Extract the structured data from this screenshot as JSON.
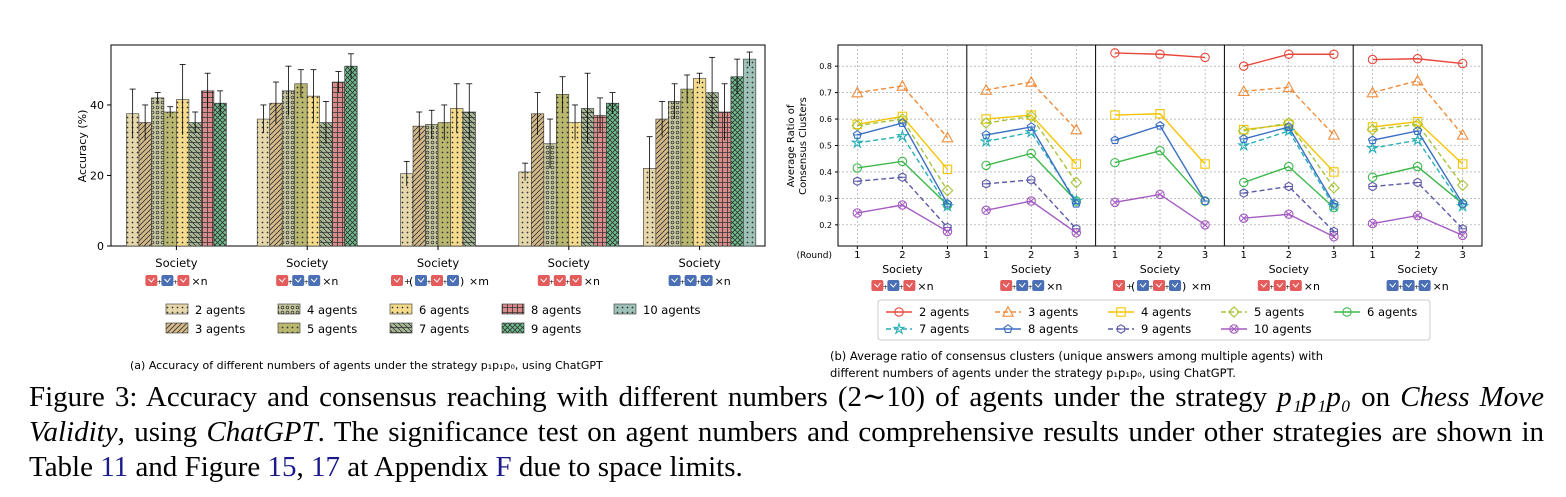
{
  "figure": {
    "label": "Figure 3:",
    "caption_parts": [
      {
        "t": "text",
        "v": " Accuracy and consensus reaching with different numbers (2∼10) of agents under the strategy "
      },
      {
        "t": "math",
        "v": "p₁p₁p₀"
      },
      {
        "t": "text",
        "v": " on "
      },
      {
        "t": "italic",
        "v": "Chess Move Validity"
      },
      {
        "t": "text",
        "v": ", using "
      },
      {
        "t": "italic",
        "v": "ChatGPT"
      },
      {
        "t": "text",
        "v": ". The significance test on agent numbers and comprehensive results under other strategies are shown in Table "
      },
      {
        "t": "ref",
        "v": "11"
      },
      {
        "t": "text",
        "v": " and Figure "
      },
      {
        "t": "ref",
        "v": "15"
      },
      {
        "t": "text",
        "v": ", "
      },
      {
        "t": "ref",
        "v": "17"
      },
      {
        "t": "text",
        "v": " at Appendix "
      },
      {
        "t": "ref",
        "v": "F"
      },
      {
        "t": "text",
        "v": " due to space limits."
      }
    ]
  },
  "society_formulas": [
    "×n",
    "×n",
    "×m",
    "×n",
    "×n"
  ],
  "society_icon_colors": [
    [
      "#e35b5b",
      "#4a6fb5",
      "#e35b5b"
    ],
    [
      "#e35b5b",
      "#4a6fb5",
      "#4a6fb5"
    ],
    [
      "#e35b5b",
      "#4a6fb5",
      "#e35b5b",
      "#4a6fb5"
    ],
    [
      "#e35b5b",
      "#e35b5b",
      "#e35b5b"
    ],
    [
      "#4a6fb5",
      "#4a6fb5",
      "#4a6fb5"
    ]
  ],
  "chart_data": [
    {
      "id": "a",
      "type": "bar",
      "caption": "(a) Accuracy of different numbers of agents under the strategy p₁p₁p₀, using ChatGPT",
      "ylabel": "Accuracy (%)",
      "ylim": [
        0,
        57
      ],
      "yticks": [
        0,
        20,
        40
      ],
      "categories": [
        "Society",
        "Society",
        "Society",
        "Society",
        "Society"
      ],
      "series": [
        {
          "name": "2 agents",
          "color": "#e6d8ab",
          "pattern": "dots",
          "values": [
            37.5,
            36.0,
            20.5,
            21.0,
            22.0
          ],
          "err": [
            7.0,
            4.0,
            3.5,
            2.5,
            9.0
          ]
        },
        {
          "name": "3 agents",
          "color": "#d6bb8a",
          "pattern": "diag",
          "values": [
            35.0,
            40.5,
            34.0,
            37.5,
            36.0
          ],
          "err": [
            5.0,
            6.0,
            4.0,
            6.0,
            5.0
          ]
        },
        {
          "name": "4 agents",
          "color": "#c8c8a0",
          "pattern": "stars",
          "values": [
            42.0,
            44.0,
            34.5,
            29.0,
            41.0
          ],
          "err": [
            1.5,
            7.0,
            4.0,
            7.0,
            5.0
          ]
        },
        {
          "name": "5 agents",
          "color": "#b9b86e",
          "pattern": "dots",
          "values": [
            38.0,
            46.0,
            35.0,
            43.0,
            44.5
          ],
          "err": [
            1.5,
            4.0,
            5.0,
            5.0,
            4.0
          ]
        },
        {
          "name": "6 agents",
          "color": "#f5dc8c",
          "pattern": "dots",
          "values": [
            41.5,
            42.5,
            39.0,
            35.0,
            47.5
          ],
          "err": [
            10.0,
            7.5,
            7.0,
            5.0,
            1.5
          ]
        },
        {
          "name": "7 agents",
          "color": "#a6b894",
          "pattern": "hatch",
          "values": [
            35.0,
            35.0,
            38.0,
            39.0,
            43.5
          ],
          "err": [
            3.0,
            6.0,
            8.0,
            10.0,
            10.0
          ]
        },
        {
          "name": "8 agents",
          "color": "#d98a8a",
          "pattern": "grid",
          "values": [
            44.0,
            46.5,
            0,
            37.0,
            38.0
          ],
          "err": [
            5.0,
            3.0,
            0,
            5.0,
            8.0
          ]
        },
        {
          "name": "9 agents",
          "color": "#6fbf8e",
          "pattern": "cross",
          "values": [
            40.5,
            51.0,
            0,
            40.5,
            48.0
          ],
          "err": [
            3.5,
            3.5,
            0,
            3.0,
            5.0
          ]
        },
        {
          "name": "10 agents",
          "color": "#9fc2b8",
          "pattern": "dots",
          "values": [
            0,
            0,
            0,
            0,
            53.0
          ],
          "err": [
            0,
            0,
            0,
            0,
            2.0
          ]
        }
      ],
      "legend": [
        "2 agents",
        "4 agents",
        "6 agents",
        "8 agents",
        "10 agents",
        "3 agents",
        "5 agents",
        "7 agents",
        "9 agents"
      ],
      "legend_placement": "bottom"
    },
    {
      "id": "b",
      "type": "line",
      "caption_line1": "(b)  Average ratio of consensus clusters (unique answers among multiple agents) with",
      "caption_line2": "different numbers of agents under the strategy p₁p₁p₀, using ChatGPT.",
      "ylabel_line1": "Average Ratio of",
      "ylabel_line2": "Consensus Clusters",
      "ylim": [
        0.12,
        0.88
      ],
      "yticks": [
        "0.2",
        "0.3",
        "0.4",
        "0.5",
        "0.6",
        "0.7",
        "0.8"
      ],
      "ytick_values": [
        0.2,
        0.3,
        0.4,
        0.5,
        0.6,
        0.7,
        0.8
      ],
      "x": [
        1,
        2,
        3
      ],
      "xticks": [
        "1",
        "2",
        "3"
      ],
      "round_label": "(Round)",
      "panels": [
        "Society",
        "Society",
        "Society",
        "Society",
        "Society"
      ],
      "series": [
        {
          "name": "2 agents",
          "color": "#e8473b",
          "marker": "circle",
          "dashed": false,
          "panels": [
            null,
            null,
            [
              0.85,
              0.845,
              0.833
            ],
            [
              0.8,
              0.845,
              0.845
            ],
            [
              0.825,
              0.828,
              0.81
            ]
          ]
        },
        {
          "name": "3 agents",
          "color": "#f28c3a",
          "marker": "triangle",
          "dashed": true,
          "panels": [
            [
              0.7,
              0.725,
              0.53
            ],
            [
              0.71,
              0.74,
              0.56
            ],
            null,
            [
              0.705,
              0.72,
              0.54
            ],
            [
              0.7,
              0.745,
              0.54
            ]
          ]
        },
        {
          "name": "4 agents",
          "color": "#f5c400",
          "marker": "square",
          "dashed": false,
          "panels": [
            [
              0.58,
              0.61,
              0.41
            ],
            [
              0.6,
              0.615,
              0.43
            ],
            [
              0.615,
              0.62,
              0.43
            ],
            [
              0.56,
              0.58,
              0.4
            ],
            [
              0.57,
              0.59,
              0.43
            ]
          ]
        },
        {
          "name": "5 agents",
          "color": "#a6c43a",
          "marker": "diamond",
          "dashed": true,
          "panels": [
            [
              0.575,
              0.6,
              0.33
            ],
            [
              0.585,
              0.61,
              0.36
            ],
            null,
            [
              0.555,
              0.585,
              0.34
            ],
            [
              0.56,
              0.58,
              0.35
            ]
          ]
        },
        {
          "name": "6 agents",
          "color": "#3cb84a",
          "marker": "circle",
          "dashed": false,
          "panels": [
            [
              0.415,
              0.44,
              0.275
            ],
            [
              0.425,
              0.47,
              0.29
            ],
            [
              0.435,
              0.48,
              0.29
            ],
            [
              0.36,
              0.42,
              0.265
            ],
            [
              0.38,
              0.42,
              0.28
            ]
          ]
        },
        {
          "name": "7 agents",
          "color": "#2ab0b8",
          "marker": "star",
          "dashed": true,
          "panels": [
            [
              0.51,
              0.535,
              0.27
            ],
            [
              0.515,
              0.55,
              0.29
            ],
            null,
            [
              0.5,
              0.555,
              0.27
            ],
            [
              0.49,
              0.52,
              0.27
            ]
          ]
        },
        {
          "name": "8 agents",
          "color": "#3b6fc2",
          "marker": "pentagon",
          "dashed": false,
          "panels": [
            [
              0.54,
              0.585,
              0.28
            ],
            [
              0.54,
              0.57,
              0.28
            ],
            [
              0.52,
              0.575,
              0.29
            ],
            [
              0.525,
              0.57,
              0.28
            ],
            [
              0.52,
              0.555,
              0.28
            ]
          ]
        },
        {
          "name": "9 agents",
          "color": "#5a5aa8",
          "marker": "hexagon",
          "dashed": true,
          "panels": [
            [
              0.365,
              0.38,
              0.19
            ],
            [
              0.355,
              0.37,
              0.185
            ],
            null,
            [
              0.32,
              0.345,
              0.175
            ],
            [
              0.345,
              0.36,
              0.185
            ]
          ]
        },
        {
          "name": "10 agents",
          "color": "#a45cc2",
          "marker": "xcircle",
          "dashed": false,
          "panels": [
            [
              0.245,
              0.275,
              0.175
            ],
            [
              0.255,
              0.29,
              0.17
            ],
            [
              0.285,
              0.315,
              0.2
            ],
            [
              0.225,
              0.24,
              0.155
            ],
            [
              0.205,
              0.235,
              0.16
            ]
          ]
        }
      ],
      "legend": [
        "2 agents",
        "3 agents",
        "4 agents",
        "5 agents",
        "6 agents",
        "7 agents",
        "8 agents",
        "9 agents",
        "10 agents"
      ],
      "legend_placement": "bottom"
    }
  ]
}
